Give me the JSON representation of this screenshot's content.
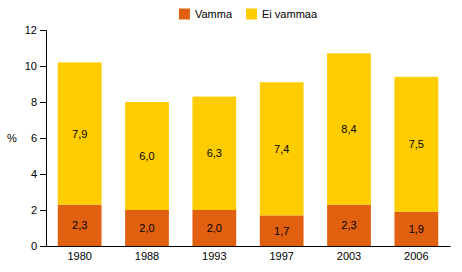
{
  "chart_data": {
    "type": "bar",
    "stacked": true,
    "categories": [
      "1980",
      "1988",
      "1993",
      "1997",
      "2003",
      "2006"
    ],
    "series": [
      {
        "name": "Vamma",
        "color": "#e06010",
        "values": [
          2.3,
          2.0,
          2.0,
          1.7,
          2.3,
          1.9
        ],
        "value_labels": [
          "2,3",
          "2,0",
          "2,0",
          "1,7",
          "2,3",
          "1,9"
        ]
      },
      {
        "name": "Ei vammaa",
        "color": "#ffcc00",
        "values": [
          7.9,
          6.0,
          6.3,
          7.4,
          8.4,
          7.5
        ],
        "value_labels": [
          "7,9",
          "6,0",
          "6,3",
          "7,4",
          "8,4",
          "7,5"
        ]
      }
    ],
    "ylabel": "%",
    "ylim": [
      0,
      12
    ],
    "yticks": [
      0,
      2,
      4,
      6,
      8,
      10,
      12
    ],
    "grid": false,
    "legend": "top",
    "data_labels": true
  }
}
